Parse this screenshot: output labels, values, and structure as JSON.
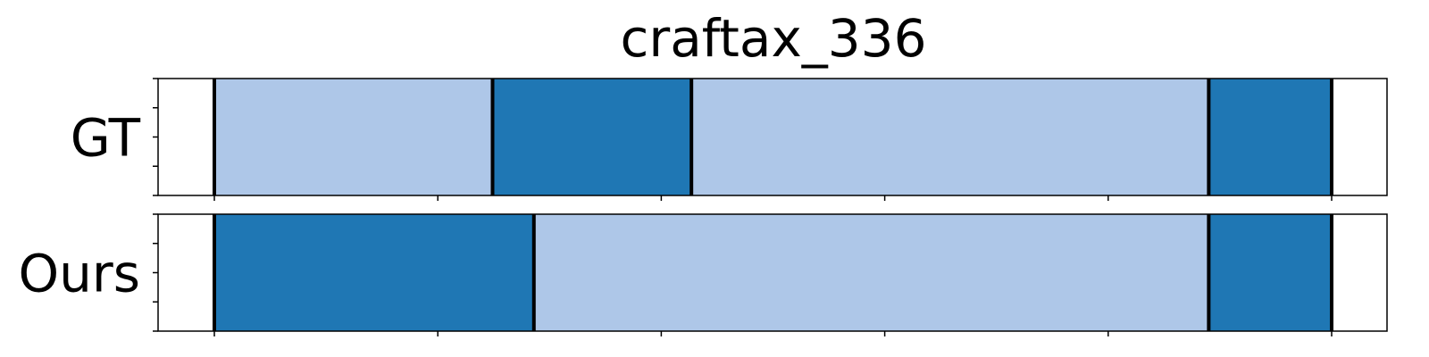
{
  "chart_data": {
    "type": "timeline-segmentation",
    "title": "craftax_336",
    "xlim": [
      0,
      100
    ],
    "x_ticks": [
      0,
      20,
      40,
      60,
      80,
      100
    ],
    "x_tick_labels_shown": false,
    "y_tick_labels_shown": false,
    "grid": false,
    "legend": "none",
    "colors": {
      "light": "#aec7e8",
      "dark": "#1f77b4",
      "boundary": "#000000"
    },
    "rows": [
      {
        "label": "GT",
        "segments": [
          {
            "start": 0,
            "end": 24.9,
            "class": "light"
          },
          {
            "start": 24.9,
            "end": 42.7,
            "class": "dark"
          },
          {
            "start": 42.7,
            "end": 89.0,
            "class": "light"
          },
          {
            "start": 89.0,
            "end": 100,
            "class": "dark"
          }
        ],
        "boundaries": [
          0,
          24.9,
          42.7,
          89.0,
          100
        ]
      },
      {
        "label": "Ours",
        "segments": [
          {
            "start": 0,
            "end": 28.6,
            "class": "dark"
          },
          {
            "start": 28.6,
            "end": 89.0,
            "class": "light"
          },
          {
            "start": 89.0,
            "end": 100,
            "class": "dark"
          }
        ],
        "boundaries": [
          0,
          28.6,
          89.0,
          100
        ]
      }
    ]
  }
}
